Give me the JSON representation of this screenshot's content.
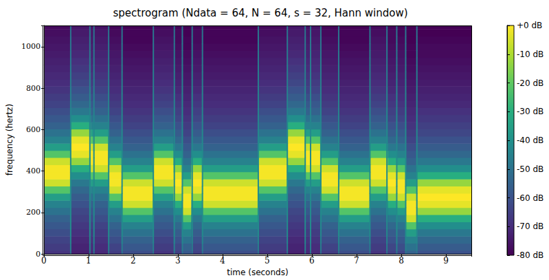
{
  "chart_data": {
    "type": "heatmap",
    "title": "spectrogram (Ndata = 64, N = 64, s = 32, Hann window)",
    "x_label": "time (seconds)",
    "y_label": "frequency (hertz)",
    "xlim": [
      0,
      9.57
    ],
    "xticks": [
      0,
      1,
      2,
      3,
      4,
      5,
      6,
      7,
      8,
      9
    ],
    "ylim": [
      0,
      1102.5
    ],
    "yticks": [
      0,
      200,
      400,
      600,
      800,
      1000
    ],
    "cells": {
      "time_edges": [
        0,
        0.6,
        1.05,
        1.45,
        1.75,
        2.45,
        2.9,
        3.1,
        3.3,
        3.55,
        4.8,
        5.45,
        5.85,
        6.2,
        6.6,
        7.3,
        7.7,
        7.9,
        8.1,
        8.35,
        9.57
      ],
      "freq_edges": [
        0,
        17.2,
        51.7,
        86.1,
        120.6,
        155.0,
        189.5,
        223.9,
        258.4,
        292.8,
        327.3,
        361.7,
        396.2,
        430.6,
        465.1,
        499.6,
        534.0,
        568.5,
        602.9,
        637.4,
        671.8,
        706.3,
        740.7,
        775.2,
        809.6,
        844.1,
        878.5,
        913.0,
        947.4,
        981.9,
        1016.3,
        1050.8,
        1085.2,
        1102.5
      ],
      "db": [
        [
          -68,
          -66,
          -64,
          -61,
          -58,
          -55,
          -50,
          -45,
          -36,
          -22,
          -6,
          -1,
          -1,
          -6,
          -22,
          -36,
          -45,
          -50,
          -55,
          -58,
          -61,
          -64,
          -66,
          -68,
          -70,
          -71,
          -72,
          -73,
          -74,
          -75,
          -76,
          -77,
          -78
        ],
        [
          -73,
          -72,
          -71,
          -69,
          -67,
          -65,
          -63,
          -60,
          -57,
          -53,
          -48,
          -41,
          -30,
          -13,
          -3,
          0,
          -3,
          -13,
          -30,
          -41,
          -48,
          -53,
          -57,
          -60,
          -63,
          -65,
          -67,
          -69,
          -71,
          -72,
          -73,
          -74,
          -75
        ],
        [
          -71,
          -70,
          -68,
          -66,
          -64,
          -61,
          -58,
          -55,
          -50,
          -45,
          -36,
          -22,
          -6,
          -1,
          -1,
          -6,
          -22,
          -36,
          -45,
          -50,
          -55,
          -58,
          -61,
          -64,
          -66,
          -68,
          -70,
          -71,
          -72,
          -73,
          -74,
          -75,
          -76
        ],
        [
          -66,
          -64,
          -61,
          -58,
          -55,
          -50,
          -45,
          -36,
          -22,
          -6,
          -1,
          -1,
          -6,
          -22,
          -36,
          -45,
          -50,
          -55,
          -58,
          -61,
          -64,
          -66,
          -68,
          -70,
          -71,
          -72,
          -73,
          -74,
          -75,
          -76,
          -77,
          -78,
          -79
        ],
        [
          -61,
          -58,
          -55,
          -50,
          -45,
          -36,
          -22,
          -6,
          -1,
          -1,
          -6,
          -22,
          -36,
          -45,
          -50,
          -55,
          -58,
          -61,
          -64,
          -66,
          -68,
          -70,
          -71,
          -72,
          -73,
          -74,
          -75,
          -76,
          -77,
          -78,
          -79,
          -79,
          -80
        ],
        [
          -68,
          -66,
          -64,
          -61,
          -58,
          -55,
          -50,
          -45,
          -36,
          -22,
          -6,
          -1,
          -1,
          -6,
          -22,
          -36,
          -45,
          -50,
          -55,
          -58,
          -61,
          -64,
          -66,
          -68,
          -70,
          -71,
          -72,
          -73,
          -74,
          -75,
          -76,
          -77,
          -78
        ],
        [
          -65,
          -63,
          -60,
          -57,
          -53,
          -48,
          -41,
          -30,
          -13,
          -3,
          0,
          -3,
          -13,
          -30,
          -41,
          -48,
          -53,
          -57,
          -60,
          -63,
          -65,
          -67,
          -69,
          -71,
          -72,
          -73,
          -74,
          -75,
          -76,
          -77,
          -78,
          -78,
          -79
        ],
        [
          -58,
          -55,
          -50,
          -45,
          -36,
          -22,
          -6,
          -1,
          -1,
          -6,
          -22,
          -36,
          -45,
          -50,
          -55,
          -58,
          -61,
          -64,
          -66,
          -68,
          -70,
          -71,
          -72,
          -73,
          -74,
          -75,
          -76,
          -77,
          -78,
          -79,
          -79,
          -80,
          -80
        ],
        [
          -65,
          -63,
          -60,
          -57,
          -53,
          -48,
          -41,
          -30,
          -13,
          -3,
          0,
          -3,
          -13,
          -30,
          -41,
          -48,
          -53,
          -57,
          -60,
          -63,
          -65,
          -67,
          -69,
          -71,
          -72,
          -73,
          -74,
          -75,
          -76,
          -77,
          -78,
          -78,
          -79
        ],
        [
          -61,
          -58,
          -55,
          -50,
          -45,
          -36,
          -22,
          -6,
          -1,
          -1,
          -6,
          -22,
          -36,
          -45,
          -50,
          -55,
          -58,
          -61,
          -64,
          -66,
          -68,
          -70,
          -71,
          -72,
          -73,
          -74,
          -75,
          -76,
          -77,
          -78,
          -79,
          -79,
          -80
        ],
        [
          -68,
          -66,
          -64,
          -61,
          -58,
          -55,
          -50,
          -45,
          -36,
          -22,
          -6,
          -1,
          -1,
          -6,
          -22,
          -36,
          -45,
          -50,
          -55,
          -58,
          -61,
          -64,
          -66,
          -68,
          -70,
          -71,
          -72,
          -73,
          -74,
          -75,
          -76,
          -77,
          -78
        ],
        [
          -73,
          -72,
          -71,
          -69,
          -67,
          -65,
          -63,
          -60,
          -57,
          -53,
          -48,
          -41,
          -30,
          -13,
          -3,
          0,
          -3,
          -13,
          -30,
          -41,
          -48,
          -53,
          -57,
          -60,
          -63,
          -65,
          -67,
          -69,
          -71,
          -72,
          -73,
          -74,
          -75
        ],
        [
          -71,
          -70,
          -68,
          -66,
          -64,
          -61,
          -58,
          -55,
          -50,
          -45,
          -36,
          -22,
          -6,
          -1,
          -1,
          -6,
          -22,
          -36,
          -45,
          -50,
          -55,
          -58,
          -61,
          -64,
          -66,
          -68,
          -70,
          -71,
          -72,
          -73,
          -74,
          -75,
          -76
        ],
        [
          -66,
          -64,
          -61,
          -58,
          -55,
          -50,
          -45,
          -36,
          -22,
          -6,
          -1,
          -1,
          -6,
          -22,
          -36,
          -45,
          -50,
          -55,
          -58,
          -61,
          -64,
          -66,
          -68,
          -70,
          -71,
          -72,
          -73,
          -74,
          -75,
          -76,
          -77,
          -78,
          -79
        ],
        [
          -61,
          -58,
          -55,
          -50,
          -45,
          -36,
          -22,
          -6,
          -1,
          -1,
          -6,
          -22,
          -36,
          -45,
          -50,
          -55,
          -58,
          -61,
          -64,
          -66,
          -68,
          -70,
          -71,
          -72,
          -73,
          -74,
          -75,
          -76,
          -77,
          -78,
          -79,
          -79,
          -80
        ],
        [
          -68,
          -66,
          -64,
          -61,
          -58,
          -55,
          -50,
          -45,
          -36,
          -22,
          -6,
          -1,
          -1,
          -6,
          -22,
          -36,
          -45,
          -50,
          -55,
          -58,
          -61,
          -64,
          -66,
          -68,
          -70,
          -71,
          -72,
          -73,
          -74,
          -75,
          -76,
          -77,
          -78
        ],
        [
          -65,
          -63,
          -60,
          -57,
          -53,
          -48,
          -41,
          -30,
          -13,
          -3,
          0,
          -3,
          -13,
          -30,
          -41,
          -48,
          -53,
          -57,
          -60,
          -63,
          -65,
          -67,
          -69,
          -71,
          -72,
          -73,
          -74,
          -75,
          -76,
          -77,
          -78,
          -78,
          -79
        ],
        [
          -64,
          -61,
          -58,
          -55,
          -50,
          -45,
          -36,
          -22,
          -6,
          -1,
          -1,
          -6,
          -22,
          -36,
          -45,
          -50,
          -55,
          -58,
          -61,
          -64,
          -66,
          -68,
          -70,
          -71,
          -72,
          -73,
          -74,
          -75,
          -76,
          -77,
          -78,
          -79,
          -79
        ],
        [
          -55,
          -50,
          -45,
          -36,
          -22,
          -6,
          -1,
          -1,
          -6,
          -22,
          -36,
          -45,
          -50,
          -55,
          -58,
          -61,
          -64,
          -66,
          -68,
          -70,
          -71,
          -72,
          -73,
          -74,
          -75,
          -76,
          -77,
          -78,
          -79,
          -79,
          -80,
          -80,
          -80
        ],
        [
          -60,
          -57,
          -53,
          -48,
          -41,
          -30,
          -13,
          -3,
          0,
          -3,
          -13,
          -30,
          -41,
          -48,
          -53,
          -57,
          -60,
          -63,
          -65,
          -67,
          -69,
          -71,
          -72,
          -73,
          -74,
          -75,
          -76,
          -77,
          -78,
          -78,
          -79,
          -80,
          -80
        ]
      ]
    },
    "transients": {
      "times": [
        0.6,
        1.03,
        1.12,
        1.45,
        1.75,
        2.45,
        2.92,
        3.1,
        3.32,
        3.55,
        4.8,
        5.45,
        5.85,
        5.97,
        6.2,
        6.6,
        7.3,
        7.68,
        7.9,
        8.1,
        8.35
      ],
      "db": [
        -50,
        -46,
        -44,
        -42,
        -42,
        -42,
        -42,
        -42,
        -42,
        -42,
        -42,
        -42,
        -42,
        -42,
        -42,
        -43,
        -43,
        -43,
        -44,
        -44,
        -44,
        -45,
        -45,
        -45,
        -46,
        -46,
        -46,
        -47,
        -47,
        -48,
        -48,
        -49,
        -50
      ]
    },
    "colorbar": {
      "range": [
        -80,
        0
      ],
      "ticks": [
        {
          "value": 0,
          "label": "+0 dB"
        },
        {
          "value": -10,
          "label": "-10 dB"
        },
        {
          "value": -20,
          "label": "-20 dB"
        },
        {
          "value": -30,
          "label": "-30 dB"
        },
        {
          "value": -40,
          "label": "-40 dB"
        },
        {
          "value": -50,
          "label": "-50 dB"
        },
        {
          "value": -60,
          "label": "-60 dB"
        },
        {
          "value": -70,
          "label": "-70 dB"
        },
        {
          "value": -80,
          "label": "-80 dB"
        }
      ]
    }
  }
}
